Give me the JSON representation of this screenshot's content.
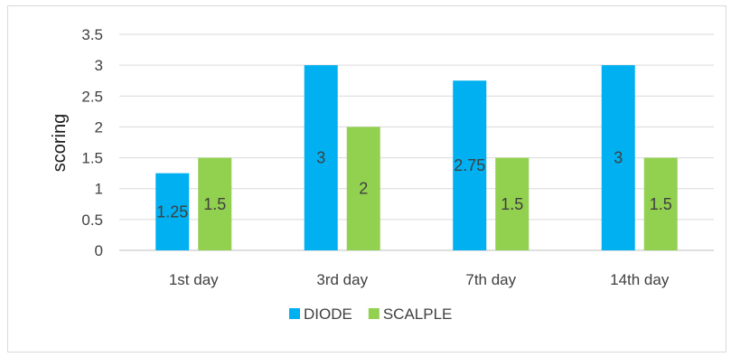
{
  "chart_data": {
    "type": "bar",
    "title": "",
    "xlabel": "",
    "ylabel": "scoring",
    "ylim": [
      0,
      3.5
    ],
    "yticks": [
      "0",
      "0.5",
      "1",
      "1.5",
      "2",
      "2.5",
      "3",
      "3.5"
    ],
    "categories": [
      "1st day",
      "3rd day",
      "7th day",
      "14th day"
    ],
    "series": [
      {
        "name": "DIODE",
        "values": [
          1.25,
          3,
          2.75,
          3
        ],
        "labels": [
          "1.25",
          "3",
          "2.75",
          "3"
        ]
      },
      {
        "name": "SCALPLE",
        "values": [
          1.5,
          2,
          1.5,
          1.5
        ],
        "labels": [
          "1.5",
          "2",
          "1.5",
          "1.5"
        ]
      }
    ],
    "grid": true,
    "legend_position": "bottom"
  },
  "colors": {
    "DIODE": "#00b0f0",
    "SCALPLE": "#92d050",
    "grid": "#d9d9d9",
    "axis": "#bfbfbf"
  }
}
